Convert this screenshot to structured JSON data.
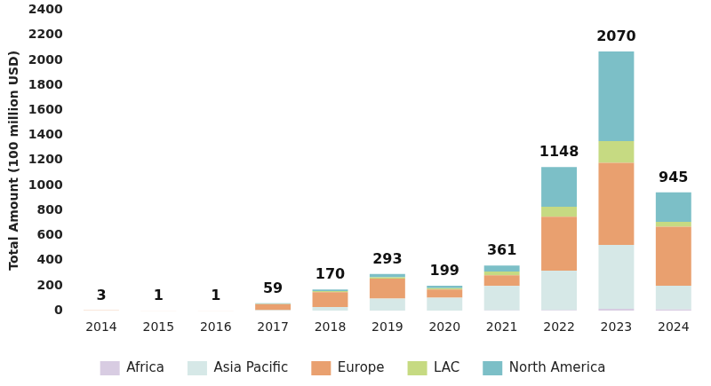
{
  "chart_data": {
    "type": "bar",
    "stacked": true,
    "y_label": "Total Amount (100 million USD)",
    "categories": [
      "2014",
      "2015",
      "2016",
      "2017",
      "2018",
      "2019",
      "2020",
      "2021",
      "2022",
      "2023",
      "2024"
    ],
    "series": [
      {
        "name": "Africa",
        "color": "#d8cce2",
        "values": [
          0,
          0,
          0,
          0,
          0,
          2,
          0,
          3,
          5,
          15,
          10
        ]
      },
      {
        "name": "Asia Pacific",
        "color": "#d6e8e7",
        "values": [
          1,
          0,
          0,
          5,
          30,
          95,
          105,
          195,
          315,
          510,
          190
        ]
      },
      {
        "name": "Europe",
        "color": "#e9a06f",
        "values": [
          2,
          1,
          1,
          48,
          118,
          160,
          65,
          85,
          430,
          655,
          470
        ]
      },
      {
        "name": "LAC",
        "color": "#c6da82",
        "values": [
          0,
          0,
          0,
          2,
          10,
          10,
          10,
          30,
          80,
          175,
          40
        ]
      },
      {
        "name": "North America",
        "color": "#7cbfc7",
        "values": [
          0,
          0,
          0,
          4,
          12,
          26,
          19,
          48,
          318,
          715,
          235
        ]
      }
    ],
    "totals": [
      3,
      1,
      1,
      59,
      170,
      293,
      199,
      361,
      1148,
      2070,
      945
    ],
    "ylim": [
      0,
      2400
    ],
    "yticks": [
      0,
      200,
      400,
      600,
      800,
      1000,
      1200,
      1400,
      1600,
      1800,
      2000,
      2200,
      2400
    ],
    "grid": false,
    "legend": "bottom"
  }
}
